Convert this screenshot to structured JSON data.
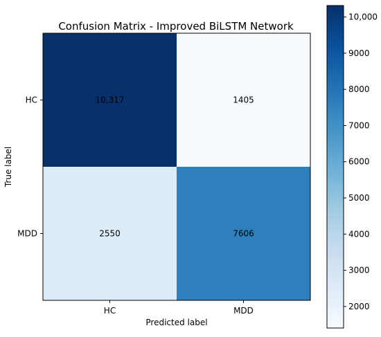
{
  "chart_data": {
    "type": "heatmap",
    "title": "Confusion Matrix - Improved BiLSTM Network",
    "xlabel": "Predicted label",
    "ylabel": "True label",
    "x_categories": [
      "HC",
      "MDD"
    ],
    "y_categories": [
      "HC",
      "MDD"
    ],
    "values": [
      [
        10317,
        1405
      ],
      [
        2550,
        7606
      ]
    ],
    "cell_labels": [
      [
        "10,317",
        "1405"
      ],
      [
        "2550",
        "7606"
      ]
    ],
    "colormap": "Blues",
    "colorbar": {
      "range": [
        1405,
        10317
      ],
      "ticks": [
        2000,
        3000,
        4000,
        5000,
        6000,
        7000,
        8000,
        9000,
        10000
      ],
      "tick_labels": [
        "2000",
        "3000",
        "4000",
        "5000",
        "6000",
        "7000",
        "8000",
        "9000",
        "10,000"
      ]
    },
    "grid": false
  },
  "colors": {
    "low": "#f7fbff",
    "high": "#08306b",
    "text_on_dark": "#f7fbff",
    "text_on_light": "#08306b"
  }
}
